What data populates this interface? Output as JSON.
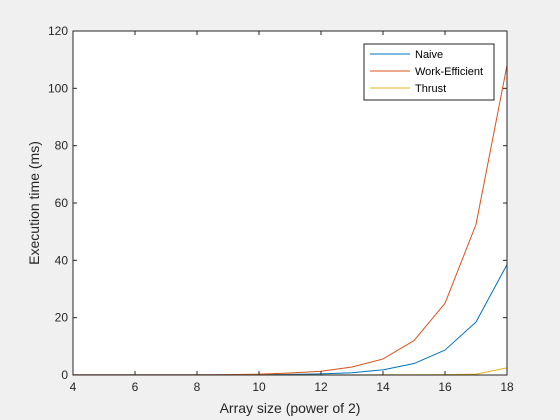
{
  "chart_data": {
    "type": "line",
    "title": "",
    "xlabel": "Array size (power of 2)",
    "ylabel": "Execution time (ms)",
    "xlim": [
      4,
      18
    ],
    "ylim": [
      0,
      120
    ],
    "xticks": [
      "4",
      "6",
      "8",
      "10",
      "12",
      "14",
      "16",
      "18"
    ],
    "yticks": [
      "0",
      "20",
      "40",
      "60",
      "80",
      "100",
      "120"
    ],
    "x": [
      4,
      5,
      6,
      7,
      8,
      9,
      10,
      11,
      12,
      13,
      14,
      15,
      16,
      17,
      18
    ],
    "grid": false,
    "legend_position": "top-right",
    "series": [
      {
        "name": "Naive",
        "color": "#0072BD",
        "values": [
          0.05,
          0.05,
          0.05,
          0.05,
          0.05,
          0.05,
          0.1,
          0.2,
          0.4,
          0.8,
          1.8,
          4.0,
          8.7,
          18.5,
          38.5
        ]
      },
      {
        "name": "Work-Efficient",
        "color": "#D95319",
        "values": [
          0.1,
          0.1,
          0.1,
          0.1,
          0.1,
          0.15,
          0.3,
          0.7,
          1.3,
          2.8,
          5.6,
          12.0,
          25.0,
          52.5,
          108.0
        ]
      },
      {
        "name": "Thrust",
        "color": "#EDB120",
        "values": [
          0.02,
          0.02,
          0.02,
          0.02,
          0.02,
          0.02,
          0.03,
          0.04,
          0.05,
          0.06,
          0.08,
          0.1,
          0.15,
          0.3,
          2.5
        ]
      }
    ]
  }
}
